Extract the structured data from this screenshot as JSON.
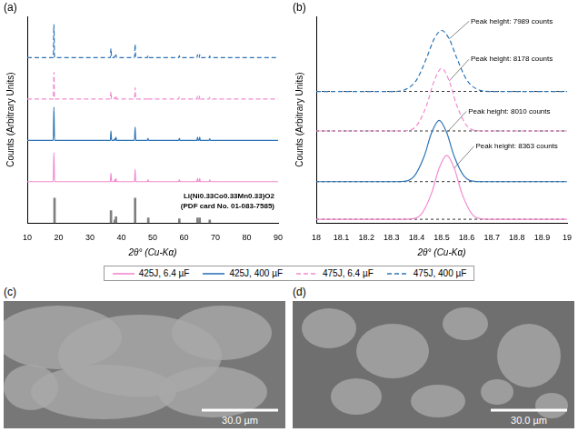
{
  "chart_data": [
    {
      "panel": "(a)",
      "type": "line",
      "x_label": "2θ° (Cu-Kα)",
      "y_label": "Counts (Arbitrary Units)",
      "xlim": [
        10,
        90
      ],
      "xticks": [
        10,
        20,
        30,
        40,
        50,
        60,
        70,
        80,
        90
      ],
      "ylim": [
        0,
        100
      ],
      "yticks": [],
      "tick_labels": "x",
      "grid": false,
      "x": [
        10,
        18.3,
        18.5,
        18.7,
        36.5,
        36.7,
        36.9,
        37.7,
        37.9,
        38.1,
        38.1,
        38.3,
        38.5,
        44.2,
        44.4,
        44.6,
        48.3,
        48.5,
        48.7,
        58.3,
        58.5,
        58.7,
        64.1,
        64.3,
        64.5,
        64.8,
        65.0,
        65.2,
        68.0,
        68.2,
        68.4,
        90
      ],
      "series": [
        {
          "type": "bar",
          "color": "#7f7f7f",
          "annotation": [
            "Li(Ni0.33Co0.33Mn0.33)O2",
            "(PDF card No. 01-083-7585)"
          ],
          "x": [
            18.7,
            36.7,
            37.9,
            38.3,
            44.4,
            48.6,
            58.5,
            64.3,
            65.0,
            68.2
          ],
          "values": [
            12,
            6,
            1.5,
            3,
            12,
            2.5,
            2,
            2.5,
            2.5,
            1.5
          ]
        },
        {
          "name": "425J, 6.4 µF",
          "color": "#f28ad0",
          "line_style": "solid",
          "values": [
            20,
            20,
            34,
            20,
            20,
            24,
            20,
            20,
            20.8,
            20,
            20,
            21.5,
            20,
            20,
            26,
            20,
            20,
            21,
            20,
            20,
            21,
            20,
            20,
            21.5,
            20,
            20,
            21.5,
            20,
            20,
            20.8,
            20,
            20
          ]
        },
        {
          "name": "425J, 400 µF",
          "color": "#2e75b6",
          "line_style": "solid",
          "values": [
            40,
            40,
            56,
            40,
            40,
            44.5,
            40,
            40,
            40.8,
            40,
            40,
            41.5,
            40,
            40,
            46.5,
            40,
            40,
            41,
            40,
            40,
            41,
            40,
            40,
            41.5,
            40,
            40,
            41.5,
            40,
            40,
            40.8,
            40,
            40
          ]
        },
        {
          "name": "475J, 6.4 µF",
          "color": "#f28ad0",
          "line_style": "dashed",
          "values": [
            60,
            60,
            73,
            60,
            60,
            63.5,
            60,
            60,
            60.8,
            60,
            60,
            61.5,
            60,
            60,
            65.5,
            60,
            60,
            61,
            60,
            60,
            61,
            60,
            60,
            61.5,
            60,
            60,
            61.5,
            60,
            60,
            60.8,
            60,
            60
          ]
        },
        {
          "name": "475J, 400 µF",
          "color": "#2e75b6",
          "line_style": "dashed",
          "values": [
            80,
            80,
            96,
            80,
            80,
            84.5,
            80,
            80,
            80.8,
            80,
            80,
            81.5,
            80,
            80,
            86.5,
            80,
            80,
            81,
            80,
            80,
            81,
            80,
            80,
            81.5,
            80,
            80,
            81.5,
            80,
            80,
            80.8,
            80,
            80
          ]
        }
      ]
    },
    {
      "panel": "(b)",
      "type": "line",
      "x_label": "2θ° (Cu-Kα)",
      "y_label": "Counts (Arbitrary Units)",
      "xlim": [
        18,
        19
      ],
      "xticks": [
        18,
        18.1,
        18.2,
        18.3,
        18.4,
        18.5,
        18.6,
        18.7,
        18.8,
        18.9,
        19
      ],
      "ylim": [
        0,
        110
      ],
      "yticks": [],
      "tick_labels": "x",
      "grid": false,
      "legend": "bottom",
      "series": [
        {
          "name": "425J, 6.4 µF",
          "color": "#f28ad0",
          "line_style": "solid",
          "baseline": 2,
          "peak_label": "Peak height: 8363 counts",
          "x": [
            18,
            18.32,
            18.37,
            18.42,
            18.46,
            18.49,
            18.52,
            18.55,
            18.58,
            18.62,
            18.67,
            18.72,
            19
          ],
          "values": [
            2,
            2,
            2.1,
            4.9,
            16,
            29.2,
            36,
            29.2,
            16,
            4.9,
            2.1,
            2,
            2
          ]
        },
        {
          "name": "425J, 400 µF",
          "color": "#2e75b6",
          "line_style": "solid",
          "baseline": 22,
          "peak_label": "Peak height: 8010 counts",
          "x": [
            18,
            18.29,
            18.34,
            18.39,
            18.43,
            18.46,
            18.49,
            18.52,
            18.55,
            18.59,
            18.64,
            18.69,
            19
          ],
          "values": [
            22,
            22,
            22.1,
            24.8,
            35.4,
            48.1,
            54.6,
            48.1,
            35.4,
            24.8,
            22.1,
            22,
            22
          ]
        },
        {
          "name": "475J, 6.4 µF",
          "color": "#f28ad0",
          "line_style": "dashed",
          "baseline": 49,
          "peak_label": "Peak height: 8178 counts",
          "x": [
            18,
            18.3,
            18.35,
            18.4,
            18.44,
            18.47,
            18.5,
            18.53,
            18.56,
            18.6,
            18.65,
            18.7,
            19
          ],
          "values": [
            49,
            49,
            49.1,
            51.8,
            62.7,
            75.6,
            82.3,
            75.6,
            62.7,
            51.8,
            49.1,
            49,
            49
          ]
        },
        {
          "name": "475J, 400 µF",
          "color": "#2e75b6",
          "line_style": "dashed",
          "baseline": 70,
          "peak_label": "Peak height: 7989 counts",
          "x": [
            18,
            18.3,
            18.35,
            18.4,
            18.44,
            18.47,
            18.5,
            18.53,
            18.56,
            18.6,
            18.65,
            18.7,
            19
          ],
          "values": [
            70,
            70,
            70.8,
            76.2,
            87.9,
            98,
            102.5,
            98,
            87.9,
            76.2,
            70.8,
            70,
            70
          ]
        }
      ]
    }
  ],
  "images": [
    {
      "panel": "(c)",
      "scale_bar": "30.0 µm"
    },
    {
      "panel": "(d)",
      "scale_bar": "30.0 µm"
    }
  ]
}
